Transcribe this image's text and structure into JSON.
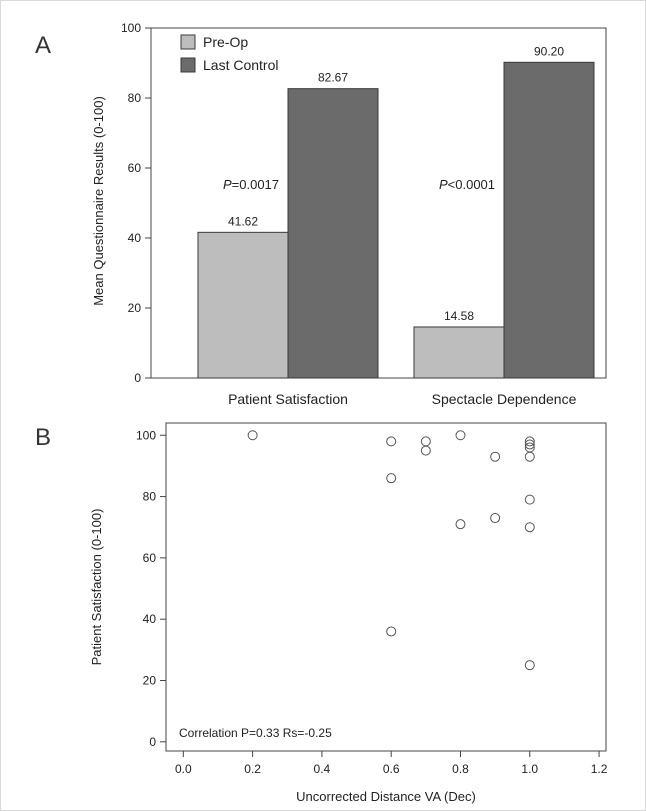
{
  "figure": {
    "panel_a_label": "A",
    "panel_b_label": "B"
  },
  "chart_data": [
    {
      "type": "bar",
      "panel": "A",
      "categories": [
        "Patient Satisfaction",
        "Spectacle Dependence"
      ],
      "series": [
        {
          "name": "Pre-Op",
          "values": [
            41.62,
            14.58
          ],
          "labels": [
            "41.62",
            "14.58"
          ],
          "color": "#bdbdbd"
        },
        {
          "name": "Last Control",
          "values": [
            82.67,
            90.2
          ],
          "labels": [
            "82.67",
            "90.20"
          ],
          "color": "#6b6b6b"
        }
      ],
      "ylabel": "Mean Questionnaire Results (0-100)",
      "ylim": [
        0,
        100
      ],
      "yticks": [
        0,
        20,
        40,
        60,
        80,
        100
      ],
      "yticklabels": [
        "0",
        "20",
        "40",
        "60",
        "80",
        "100"
      ],
      "annotations": [
        {
          "prefix": "P",
          "text": "=0.0017"
        },
        {
          "prefix": "P",
          "text": "<0.0001"
        }
      ],
      "legend_position": "top-left",
      "grid": false
    },
    {
      "type": "scatter",
      "panel": "B",
      "xlabel": "Uncorrected Distance VA (Dec)",
      "ylabel": "Patient Satisfaction (0-100)",
      "xlim": [
        -0.05,
        1.22
      ],
      "ylim": [
        -3,
        104
      ],
      "xticks": [
        0,
        0.2,
        0.4,
        0.6,
        0.8,
        1.0,
        1.2
      ],
      "xticklabels": [
        "0.0",
        "0.2",
        "0.4",
        "0.6",
        "0.8",
        "1.0",
        "1.2"
      ],
      "yticks": [
        0,
        20,
        40,
        60,
        80,
        100
      ],
      "yticklabels": [
        "0",
        "20",
        "40",
        "60",
        "80",
        "100"
      ],
      "x": [
        0.2,
        0.6,
        0.6,
        0.6,
        0.7,
        0.7,
        0.8,
        0.8,
        0.9,
        0.9,
        1.0,
        1.0,
        1.0,
        1.0,
        1.0,
        1.0,
        1.0
      ],
      "y": [
        100,
        98,
        86,
        36,
        98,
        95,
        100,
        71,
        93,
        73,
        98,
        96,
        93,
        79,
        70,
        25,
        97
      ],
      "note": "Correlation P=0.33 Rs=-0.25",
      "grid": false
    }
  ]
}
